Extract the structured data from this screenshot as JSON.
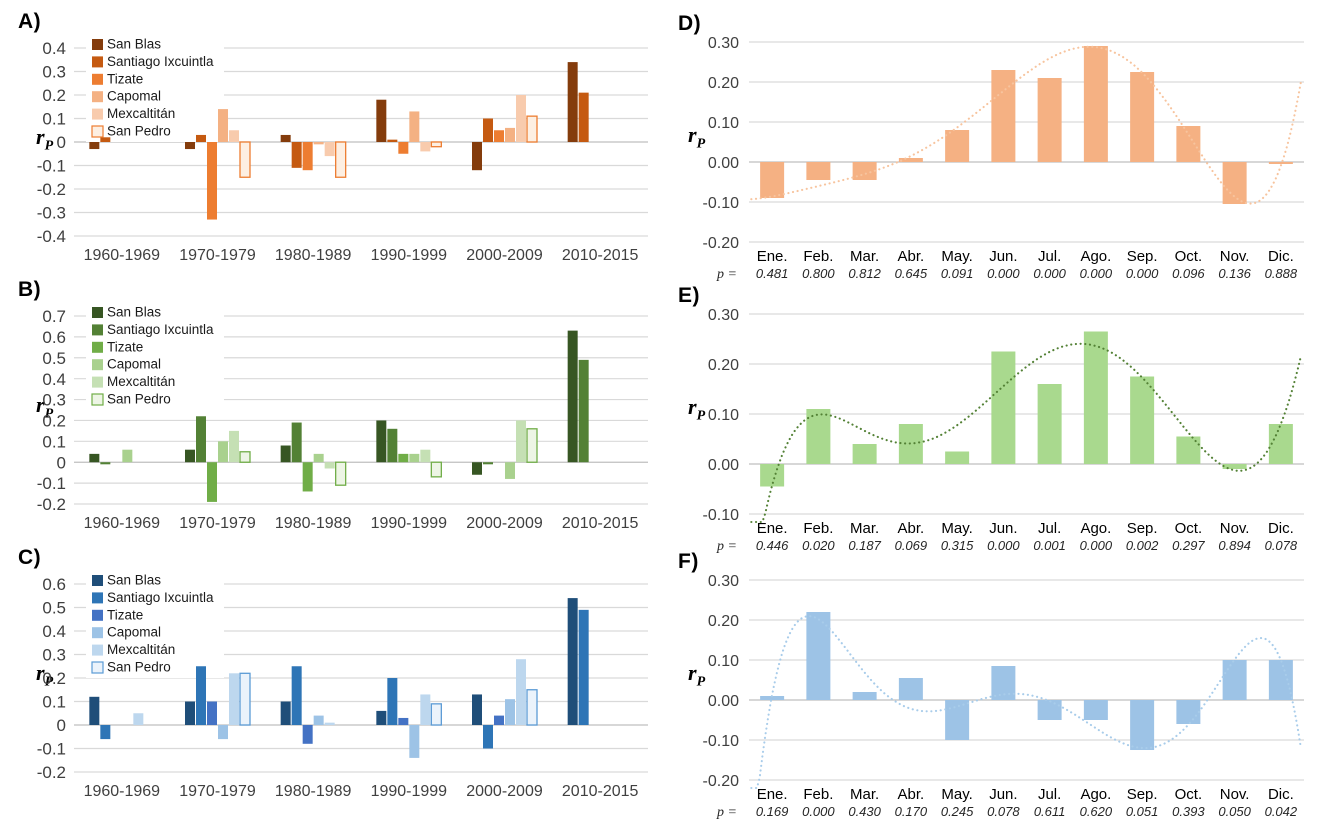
{
  "ylabel": {
    "base": "r",
    "sub": "P"
  },
  "axis_style": {
    "grid_color": "#D9D9D9",
    "zero_line_color": "#BFBFBF",
    "tick_color": "#3F3F3F",
    "category_color": "#404040"
  },
  "chart_data": [
    {
      "id": "A",
      "panel_label": "A)",
      "type": "grouped-bar",
      "categories": [
        "1960-1969",
        "1970-1979",
        "1980-1989",
        "1990-1999",
        "2000-2009",
        "2010-2015"
      ],
      "series": [
        {
          "name": "San Blas",
          "color": "#843C0C",
          "values": [
            -0.03,
            -0.03,
            0.03,
            0.18,
            -0.12,
            0.34
          ]
        },
        {
          "name": "Santiago Ixcuintla",
          "color": "#C55A11",
          "values": [
            0.02,
            0.03,
            -0.11,
            0.01,
            0.1,
            0.21
          ]
        },
        {
          "name": "Tizate",
          "color": "#ED7D31",
          "values": [
            0,
            -0.33,
            -0.12,
            -0.05,
            0.05,
            0
          ]
        },
        {
          "name": "Capomal",
          "color": "#F4B183",
          "values": [
            0,
            0.14,
            -0.01,
            0.13,
            0.06,
            0
          ]
        },
        {
          "name": "Mexcaltitán",
          "color": "#F8CBAD",
          "values": [
            0,
            0.05,
            -0.06,
            -0.04,
            0.2,
            0
          ]
        },
        {
          "name": "San Pedro",
          "color": "#FDEFE2",
          "border": "#ED7D31",
          "values": [
            0,
            -0.15,
            -0.15,
            -0.02,
            0.11,
            0
          ]
        }
      ],
      "ylim": [
        -0.4,
        0.4
      ],
      "ytick": 0.1,
      "tick_decimals": 1,
      "grid": true,
      "legend_position": "top-left"
    },
    {
      "id": "B",
      "panel_label": "B)",
      "type": "grouped-bar",
      "categories": [
        "1960-1969",
        "1970-1979",
        "1980-1989",
        "1990-1999",
        "2000-2009",
        "2010-2015"
      ],
      "series": [
        {
          "name": "San Blas",
          "color": "#375623",
          "values": [
            0.04,
            0.06,
            0.08,
            0.2,
            -0.06,
            0.63
          ]
        },
        {
          "name": "Santiago Ixcuintla",
          "color": "#538135",
          "values": [
            -0.01,
            0.22,
            0.19,
            0.16,
            -0.01,
            0.49
          ]
        },
        {
          "name": "Tizate",
          "color": "#70AD47",
          "values": [
            0,
            -0.19,
            -0.14,
            0.04,
            0,
            0
          ]
        },
        {
          "name": "Capomal",
          "color": "#A9D18E",
          "values": [
            0.06,
            0.1,
            0.04,
            0.04,
            -0.08,
            0
          ]
        },
        {
          "name": "Mexcaltitán",
          "color": "#C5E0B4",
          "values": [
            0,
            0.15,
            -0.03,
            0.06,
            0.2,
            0
          ]
        },
        {
          "name": "San Pedro",
          "color": "#EDF5E5",
          "border": "#70AD47",
          "values": [
            0,
            0.05,
            -0.11,
            -0.07,
            0.16,
            0
          ]
        }
      ],
      "ylim": [
        -0.2,
        0.7
      ],
      "ytick": 0.1,
      "tick_decimals": 1,
      "grid": true,
      "legend_position": "top-left"
    },
    {
      "id": "C",
      "panel_label": "C)",
      "type": "grouped-bar",
      "categories": [
        "1960-1969",
        "1970-1979",
        "1980-1989",
        "1990-1999",
        "2000-2009",
        "2010-2015"
      ],
      "series": [
        {
          "name": "San Blas",
          "color": "#1F4E79",
          "values": [
            0.12,
            0.1,
            0.1,
            0.06,
            0.13,
            0.54
          ]
        },
        {
          "name": "Santiago Ixcuintla",
          "color": "#2E75B6",
          "values": [
            -0.06,
            0.25,
            0.25,
            0.2,
            -0.1,
            0.49
          ]
        },
        {
          "name": "Tizate",
          "color": "#4472C4",
          "values": [
            0,
            0.1,
            -0.08,
            0.03,
            0.04,
            0
          ]
        },
        {
          "name": "Capomal",
          "color": "#9DC3E6",
          "values": [
            0,
            -0.06,
            0.04,
            -0.14,
            0.11,
            0
          ]
        },
        {
          "name": "Mexcaltitán",
          "color": "#BDD7EE",
          "values": [
            0.05,
            0.22,
            0.01,
            0.13,
            0.28,
            0
          ]
        },
        {
          "name": "San Pedro",
          "color": "#EBF3FB",
          "border": "#5B9BD5",
          "values": [
            0,
            0.22,
            0,
            0.09,
            0.15,
            0
          ]
        }
      ],
      "ylim": [
        -0.2,
        0.6
      ],
      "ytick": 0.1,
      "tick_decimals": 1,
      "grid": true,
      "legend_position": "top-left"
    },
    {
      "id": "D",
      "panel_label": "D)",
      "type": "monthly-bar",
      "categories": [
        "Ene.",
        "Feb.",
        "Mar.",
        "Abr.",
        "May.",
        "Jun.",
        "Jul.",
        "Ago.",
        "Sep.",
        "Oct.",
        "Nov.",
        "Dic."
      ],
      "values": [
        -0.09,
        -0.045,
        -0.045,
        0.01,
        0.08,
        0.23,
        0.21,
        0.29,
        0.225,
        0.09,
        -0.105,
        -0.005
      ],
      "p_label": "p =",
      "p_values": [
        "0.481",
        "0.800",
        "0.812",
        "0.645",
        "0.091",
        "0.000",
        "0.000",
        "0.000",
        "0.000",
        "0.096",
        "0.136",
        "0.888"
      ],
      "bar_color": "#F5B183",
      "trend_color": "#F7C49E",
      "trend": "polynomial-6",
      "ylim": [
        -0.2,
        0.3
      ],
      "ytick": 0.1,
      "tick_decimals": 2,
      "grid": true
    },
    {
      "id": "E",
      "panel_label": "E)",
      "type": "monthly-bar",
      "categories": [
        "Ene.",
        "Feb.",
        "Mar.",
        "Abr.",
        "May.",
        "Jun.",
        "Jul.",
        "Ago.",
        "Sep.",
        "Oct.",
        "Nov.",
        "Dic."
      ],
      "values": [
        -0.045,
        0.11,
        0.04,
        0.08,
        0.025,
        0.225,
        0.16,
        0.265,
        0.175,
        0.055,
        -0.01,
        0.08
      ],
      "p_label": "p =",
      "p_values": [
        "0.446",
        "0.020",
        "0.187",
        "0.069",
        "0.315",
        "0.000",
        "0.001",
        "0.000",
        "0.002",
        "0.297",
        "0.894",
        "0.078"
      ],
      "bar_color": "#A9D98E",
      "trend_color": "#538135",
      "trend": "polynomial-6",
      "ylim": [
        -0.1,
        0.3
      ],
      "ytick": 0.1,
      "tick_decimals": 2,
      "grid": true
    },
    {
      "id": "F",
      "panel_label": "F)",
      "type": "monthly-bar",
      "categories": [
        "Ene.",
        "Feb.",
        "Mar.",
        "Abr.",
        "May.",
        "Jun.",
        "Jul.",
        "Ago.",
        "Sep.",
        "Oct.",
        "Nov.",
        "Dic."
      ],
      "values": [
        0.01,
        0.22,
        0.02,
        0.055,
        -0.1,
        0.085,
        -0.05,
        -0.05,
        -0.125,
        -0.06,
        0.1,
        0.1
      ],
      "p_label": "p =",
      "p_values": [
        "0.169",
        "0.000",
        "0.430",
        "0.170",
        "0.245",
        "0.078",
        "0.611",
        "0.620",
        "0.051",
        "0.393",
        "0.050",
        "0.042"
      ],
      "bar_color": "#9DC3E6",
      "trend_color": "#A8CCEA",
      "trend": "polynomial-6",
      "ylim": [
        -0.2,
        0.3
      ],
      "ytick": 0.1,
      "tick_decimals": 2,
      "grid": true
    }
  ]
}
